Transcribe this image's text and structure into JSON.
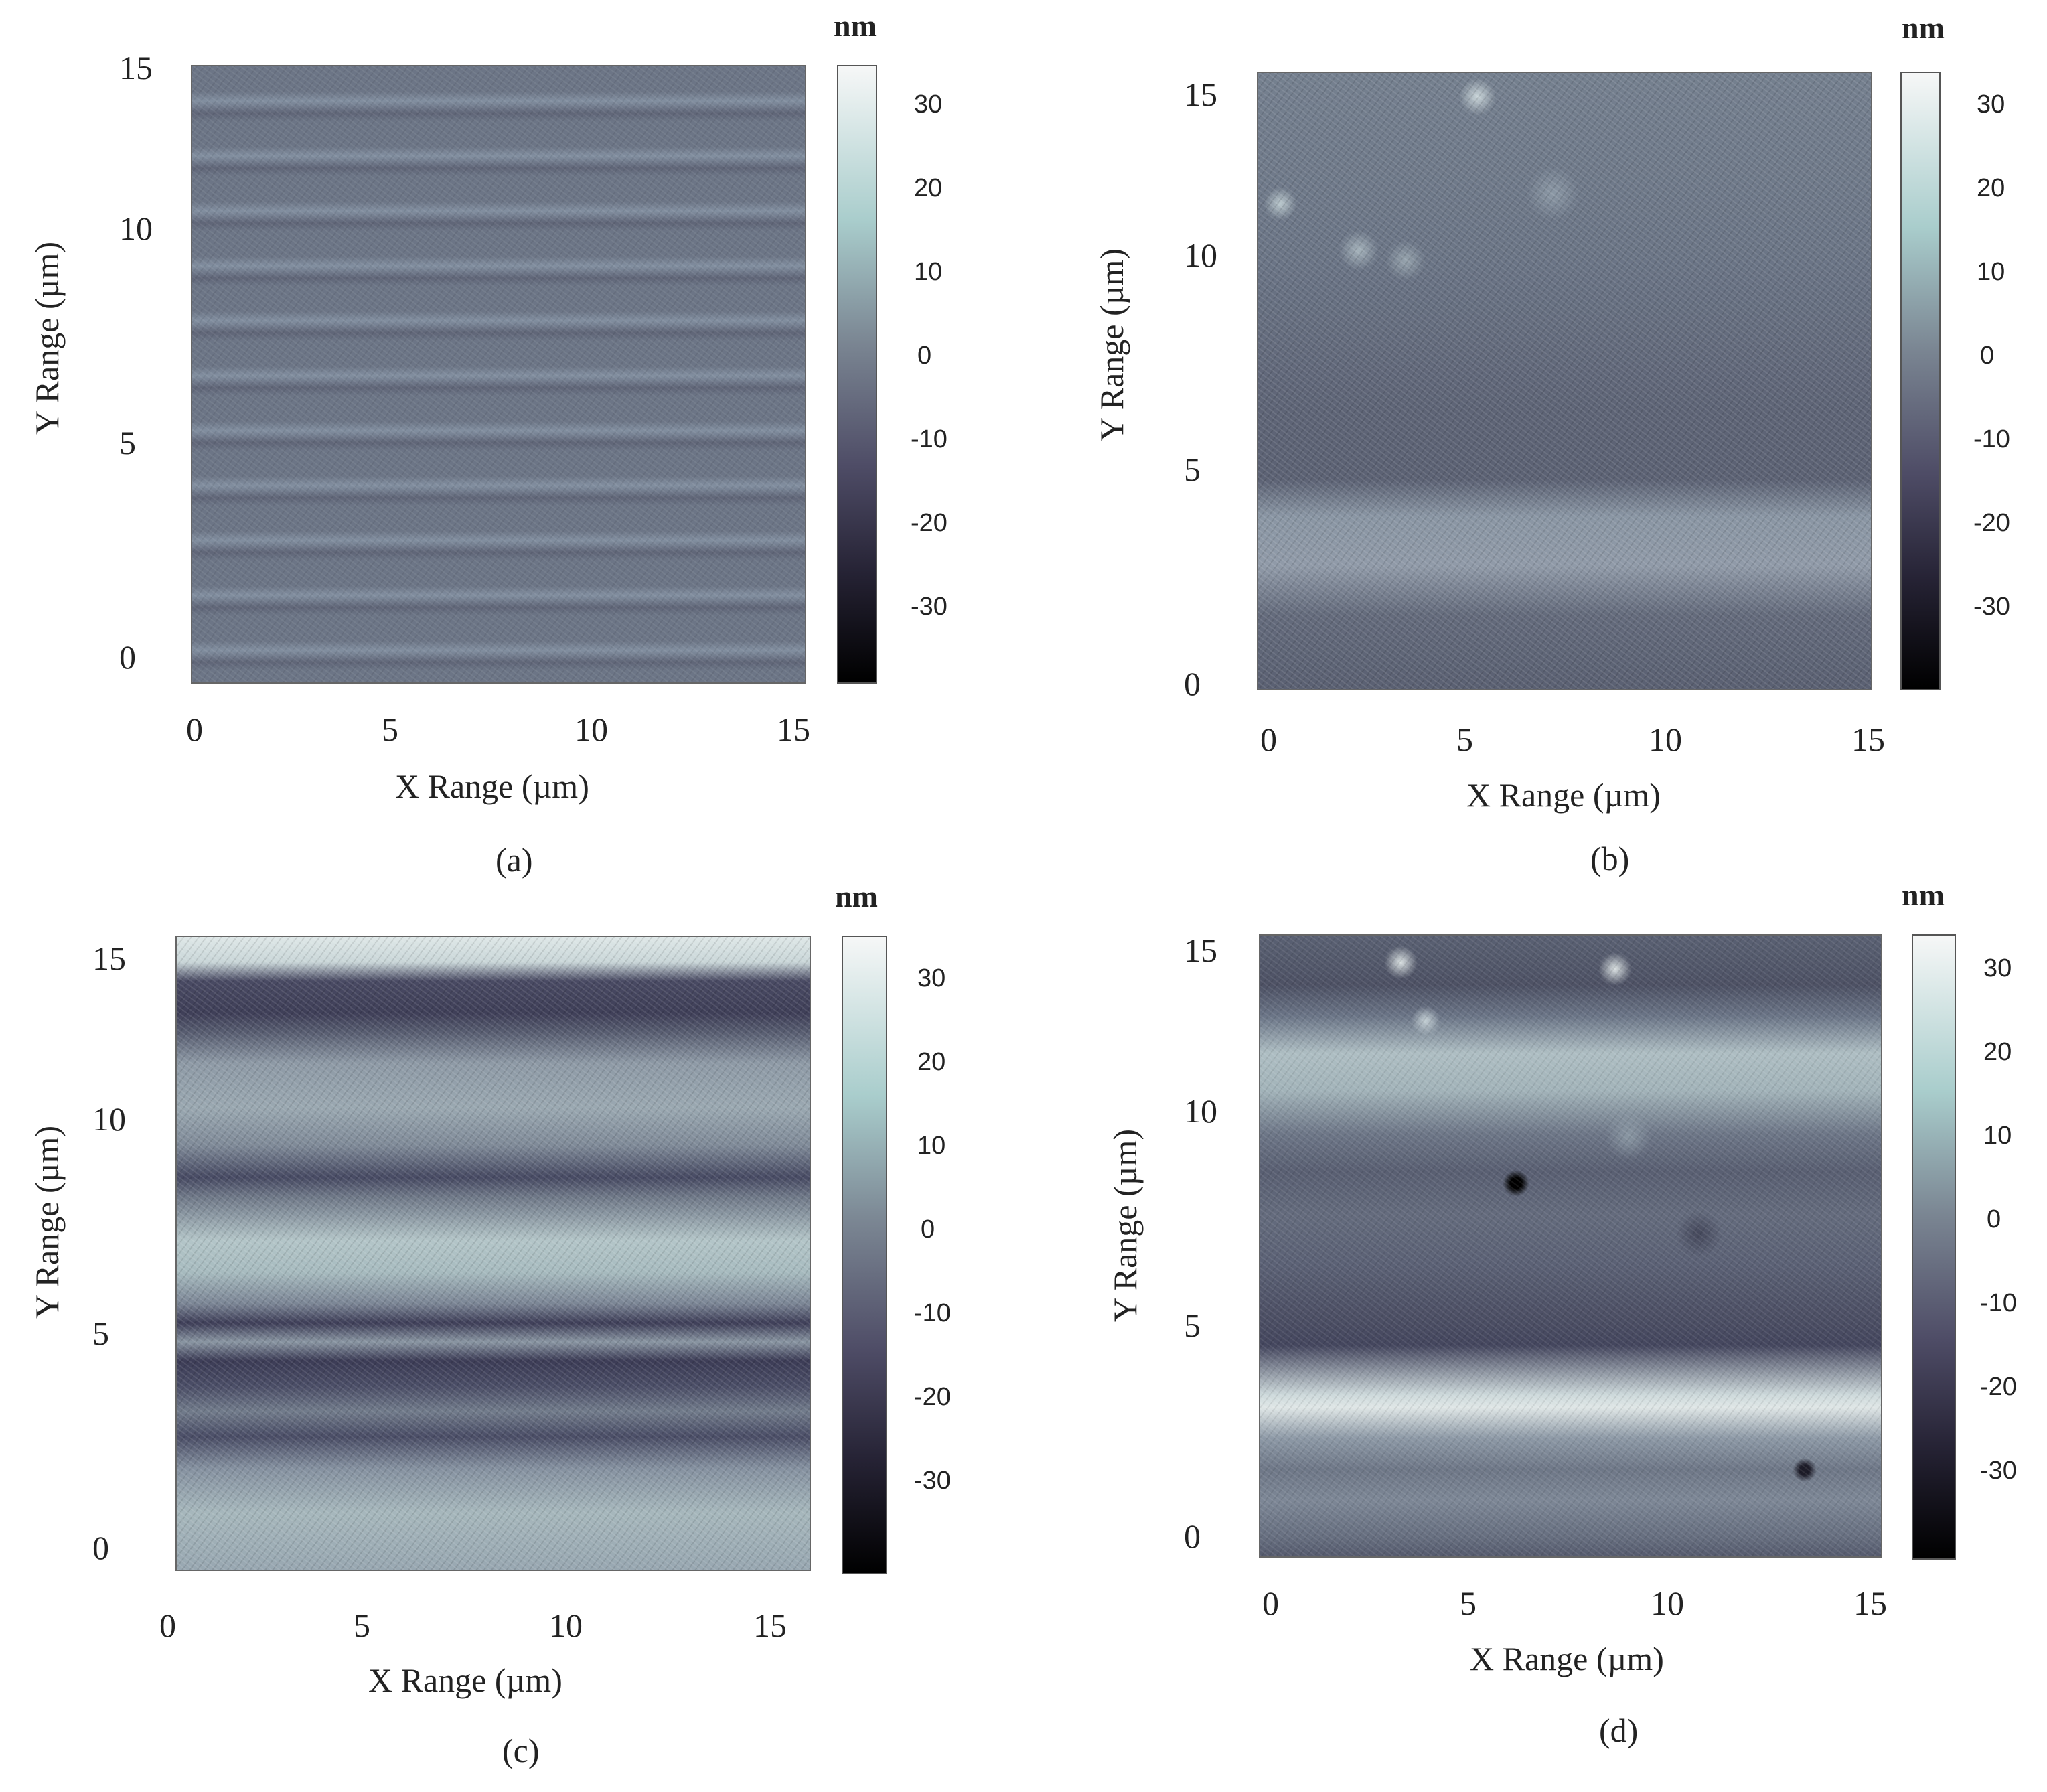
{
  "chart_data": [
    {
      "type": "heatmap",
      "label": "(a)",
      "xlabel": "X Range (µm)",
      "ylabel": "Y Range (µm)",
      "x_ticks": [
        "0",
        "5",
        "10",
        "15"
      ],
      "y_ticks": [
        "15",
        "10",
        "5",
        "0"
      ],
      "xlim": [
        0,
        15
      ],
      "ylim": [
        0,
        15
      ],
      "colorbar": {
        "unit": "nm",
        "ticks": [
          "30",
          "20",
          "10",
          "0",
          "-10",
          "-20",
          "-30"
        ]
      }
    },
    {
      "type": "heatmap",
      "label": "(b)",
      "xlabel": "X Range (µm)",
      "ylabel": "Y Range (µm)",
      "x_ticks": [
        "0",
        "5",
        "10",
        "15"
      ],
      "y_ticks": [
        "15",
        "10",
        "5",
        "0"
      ],
      "xlim": [
        0,
        15
      ],
      "ylim": [
        0,
        15
      ],
      "colorbar": {
        "unit": "nm",
        "ticks": [
          "30",
          "20",
          "10",
          "0",
          "-10",
          "-20",
          "-30"
        ]
      }
    },
    {
      "type": "heatmap",
      "label": "(c)",
      "xlabel": "X Range (µm)",
      "ylabel": "Y Range (µm)",
      "x_ticks": [
        "0",
        "5",
        "10",
        "15"
      ],
      "y_ticks": [
        "15",
        "10",
        "5",
        "0"
      ],
      "xlim": [
        0,
        15
      ],
      "ylim": [
        0,
        15
      ],
      "colorbar": {
        "unit": "nm",
        "ticks": [
          "30",
          "20",
          "10",
          "0",
          "-10",
          "-20",
          "-30"
        ]
      }
    },
    {
      "type": "heatmap",
      "label": "(d)",
      "xlabel": "X Range (µm)",
      "ylabel": "Y Range (µm)",
      "x_ticks": [
        "0",
        "5",
        "10",
        "15"
      ],
      "y_ticks": [
        "15",
        "10",
        "5",
        "0"
      ],
      "xlim": [
        0,
        15
      ],
      "ylim": [
        0,
        15
      ],
      "colorbar": {
        "unit": "nm",
        "ticks": [
          "30",
          "20",
          "10",
          "0",
          "-10",
          "-20",
          "-30"
        ]
      }
    }
  ]
}
